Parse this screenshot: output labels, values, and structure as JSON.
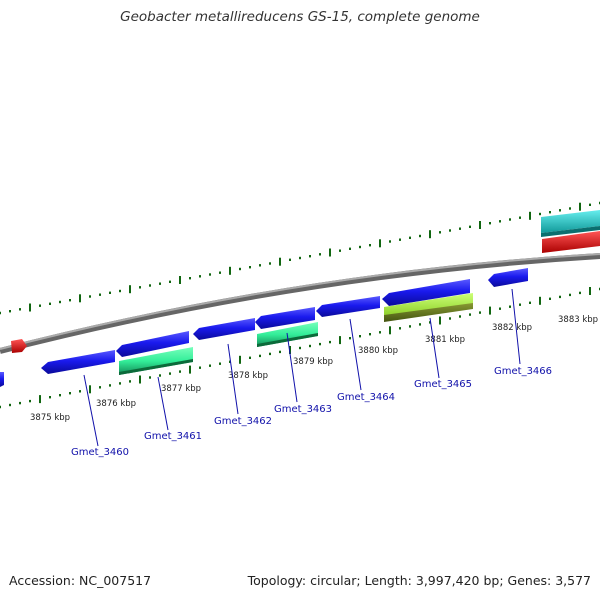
{
  "title": "Geobacter metallireducens GS-15, complete genome",
  "footer": {
    "accession": "Accession: NC_007517",
    "stats": "Topology: circular; Length: 3,997,420 bp; Genes: 3,577"
  },
  "kbp_labels": [
    "3875 kbp",
    "3876 kbp",
    "3877 kbp",
    "3878 kbp",
    "3879 kbp",
    "3880 kbp",
    "3881 kbp",
    "3882 kbp",
    "3883 kbp"
  ],
  "gene_labels": [
    "Gmet_3460",
    "Gmet_3461",
    "Gmet_3462",
    "Gmet_3463",
    "Gmet_3464",
    "Gmet_3465",
    "Gmet_3466"
  ],
  "colors": {
    "cds": "#1a1aee",
    "cds_dark": "#0a0a99",
    "rna_green": "#33ee99",
    "misc_lime": "#99ee33",
    "misc_olive": "#667722",
    "cyan": "#33cccc",
    "red": "#ee1111",
    "backbone": "#888888",
    "tick": "#116611",
    "label_line": "#1111aa"
  }
}
